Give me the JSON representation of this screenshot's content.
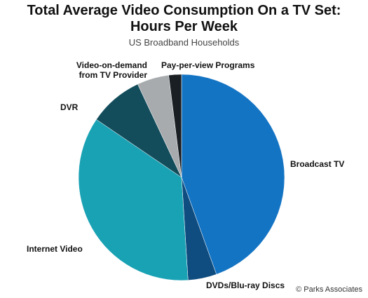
{
  "chart_data": {
    "type": "pie",
    "title_line1": "Total Average Video Consumption On a TV Set:",
    "title_line2": "Hours Per Week",
    "subtitle": "US Broadband Households",
    "slices": [
      {
        "label": "Broadcast TV",
        "value": 44.5,
        "color": "#1474c4"
      },
      {
        "label": "DVDs/Blu-ray Discs",
        "value": 4.5,
        "color": "#0f4d80"
      },
      {
        "label": "Internet Video",
        "value": 35.5,
        "color": "#19a2b4"
      },
      {
        "label": "DVR",
        "value": 8.5,
        "color": "#134d5c"
      },
      {
        "label": "Video-on-demand from TV Provider",
        "value": 5.0,
        "color": "#a8abae"
      },
      {
        "label": "Pay-per-view Programs",
        "value": 2.0,
        "color": "#1a1f24"
      }
    ]
  },
  "labels": {
    "broadcast": "Broadcast TV",
    "dvd": "DVDs/Blu-ray Discs",
    "internet": "Internet Video",
    "dvr": "DVR",
    "vod_line1": "Video-on-demand",
    "vod_line2": "from TV Provider",
    "ppv": "Pay-per-view Programs"
  },
  "credit": "© Parks Associates"
}
